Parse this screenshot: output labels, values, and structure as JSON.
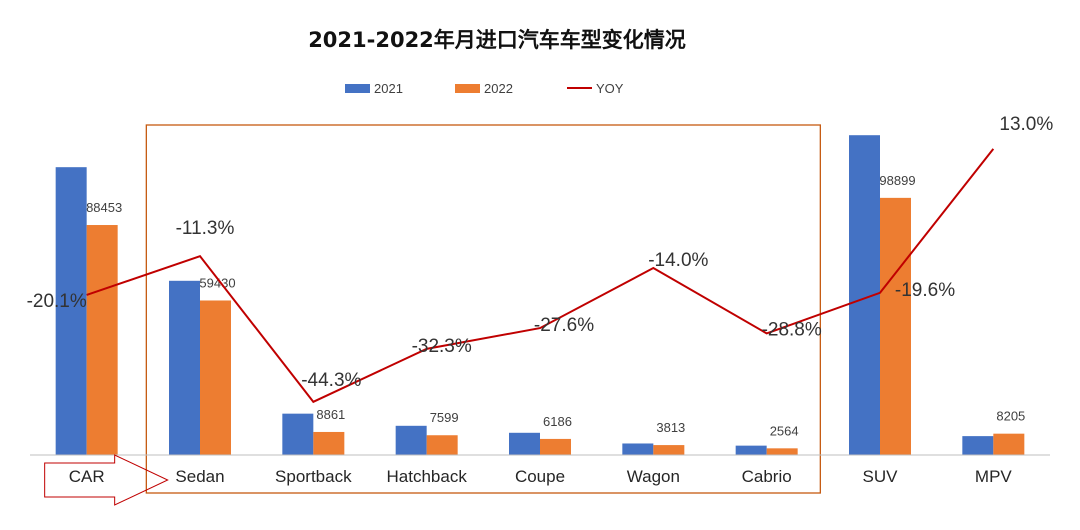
{
  "chart_data": {
    "type": "bar",
    "title": "2021-2022年月进口汽车车型变化情况",
    "categories": [
      "CAR",
      "Sedan",
      "Sportback",
      "Hatchback",
      "Coupe",
      "Wagon",
      "Cabrio",
      "SUV",
      "MPV"
    ],
    "series": [
      {
        "name": "2021",
        "color": "#4472C4",
        "values": [
          110700,
          67000,
          15900,
          11230,
          8540,
          4430,
          3600,
          123000,
          7260
        ]
      },
      {
        "name": "2022",
        "color": "#ED7D31",
        "values": [
          88453,
          59430,
          8861,
          7599,
          6186,
          3813,
          2564,
          98899,
          8205
        ],
        "labels": [
          "88453",
          "59430",
          "8861",
          "7599",
          "6186",
          "3813",
          "2564",
          "98899",
          "8205"
        ]
      },
      {
        "name": "YOY",
        "color": "#C00000",
        "type": "line",
        "values": [
          -20.1,
          -11.3,
          -44.3,
          -32.3,
          -27.6,
          -14.0,
          -28.8,
          -19.6,
          13.0
        ],
        "labels": [
          "-20.1%",
          "-11.3%",
          "-44.3%",
          "-32.3%",
          "-27.6%",
          "-14.0%",
          "-28.8%",
          "-19.6%",
          "13.0%"
        ]
      }
    ],
    "ylim": [
      0,
      125000
    ],
    "yoy_range": [
      -50,
      15
    ],
    "legend_position": "top-center",
    "grid": false,
    "highlight_box_categories": [
      "Sedan",
      "Sportback",
      "Hatchback",
      "Coupe",
      "Wagon",
      "Cabrio"
    ],
    "callout_arrow_category": "CAR",
    "colors": {
      "axis": "#bfbfbf",
      "box": "#c55a11",
      "arrow": "#c00000"
    }
  }
}
